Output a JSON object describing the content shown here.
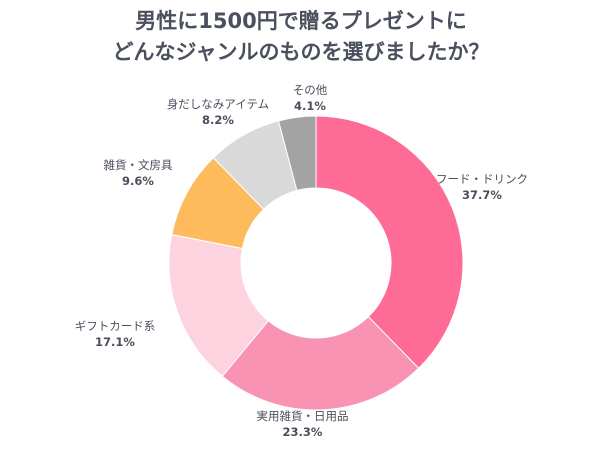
{
  "title": {
    "line1": "男性に1500円で贈るプレゼントに",
    "line2": "どんなジャンルのものを選びましたか？"
  },
  "chart_data": {
    "type": "pie",
    "donut": true,
    "categories": [
      "フード・ドリンク",
      "実用雑貨・日用品",
      "ギフトカード系",
      "雑貨・文房具",
      "身だしなみアイテム",
      "その他"
    ],
    "values": [
      37.7,
      23.3,
      17.1,
      9.6,
      8.2,
      4.1
    ],
    "value_labels": [
      "37.7%",
      "23.3%",
      "17.1%",
      "9.6%",
      "8.2%",
      "4.1%"
    ],
    "colors": [
      "#fd6b96",
      "#f893b4",
      "#fdd3e0",
      "#fdbb5b",
      "#d9d9d9",
      "#a3a3a3"
    ],
    "start": "top, clockwise"
  }
}
